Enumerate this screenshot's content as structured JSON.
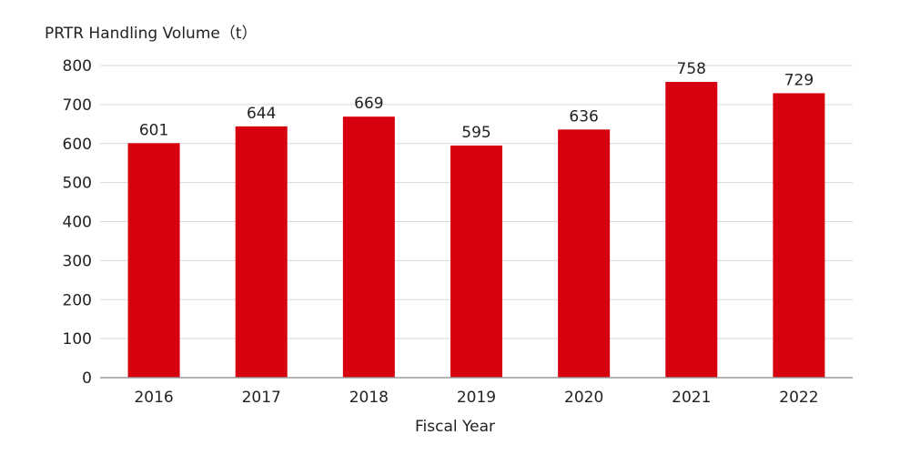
{
  "chart_data": {
    "type": "bar",
    "ylabel": "PRTR Handling Volume（t）",
    "xlabel": "Fiscal Year",
    "categories": [
      "2016",
      "2017",
      "2018",
      "2019",
      "2020",
      "2021",
      "2022"
    ],
    "values": [
      601,
      644,
      669,
      595,
      636,
      758,
      729
    ],
    "data_labels": [
      "601",
      "644",
      "669",
      "595",
      "636",
      "758",
      "729"
    ],
    "yticks": [
      0,
      100,
      200,
      300,
      400,
      500,
      600,
      700,
      800
    ],
    "ytick_labels": [
      "0",
      "100",
      "200",
      "300",
      "400",
      "500",
      "600",
      "700",
      "800"
    ],
    "ylim": [
      0,
      800
    ],
    "grid": true,
    "legend": "none",
    "bar_color": "#d7000f",
    "grid_color": "#d9d9d9",
    "axis_color": "#999999"
  }
}
